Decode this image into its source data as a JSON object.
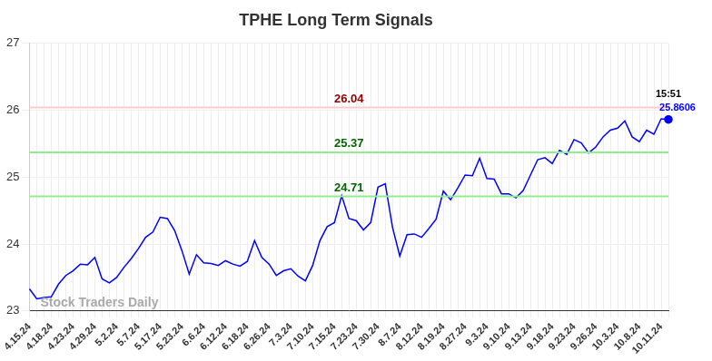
{
  "chart_data": {
    "type": "line",
    "title": "TPHE Long Term Signals",
    "categories": [
      "4.15.24",
      null,
      null,
      "4.18.24",
      null,
      null,
      "4.23.24",
      null,
      null,
      "4.29.24",
      null,
      null,
      "5.2.24",
      null,
      null,
      "5.7.24",
      null,
      null,
      "5.17.24",
      null,
      null,
      "5.23.24",
      null,
      null,
      "6.6.24",
      null,
      null,
      "6.12.24",
      null,
      null,
      "6.18.24",
      null,
      null,
      "6.26.24",
      null,
      null,
      "7.3.24",
      null,
      null,
      "7.10.24",
      null,
      null,
      "7.15.24",
      null,
      null,
      "7.23.24",
      null,
      null,
      "7.30.24",
      null,
      null,
      "8.7.24",
      null,
      null,
      "8.12.24",
      null,
      null,
      "8.19.24",
      null,
      null,
      "8.27.24",
      null,
      null,
      "9.3.24",
      null,
      null,
      "9.10.24",
      null,
      null,
      "9.13.24",
      null,
      null,
      "9.18.24",
      null,
      null,
      "9.23.24",
      null,
      null,
      "9.26.24",
      null,
      null,
      "10.3.24",
      null,
      null,
      "10.8.24",
      null,
      null,
      "10.11.24",
      null
    ],
    "values": [
      23.33,
      23.18,
      23.2,
      23.21,
      23.4,
      23.53,
      23.6,
      23.7,
      23.69,
      23.8,
      23.48,
      23.42,
      23.5,
      23.65,
      23.78,
      23.93,
      24.1,
      24.18,
      24.4,
      24.38,
      24.2,
      23.9,
      23.55,
      23.84,
      23.72,
      23.71,
      23.68,
      23.75,
      23.7,
      23.67,
      23.74,
      24.05,
      23.8,
      23.7,
      23.53,
      23.6,
      23.63,
      23.52,
      23.45,
      23.68,
      24.05,
      24.26,
      24.32,
      24.72,
      24.38,
      24.35,
      24.21,
      24.32,
      24.85,
      24.9,
      24.25,
      23.82,
      24.14,
      24.15,
      24.1,
      24.23,
      24.37,
      24.79,
      24.66,
      24.84,
      25.03,
      25.02,
      25.28,
      24.98,
      24.97,
      24.75,
      24.75,
      24.69,
      24.8,
      25.03,
      25.26,
      25.29,
      25.2,
      25.4,
      25.34,
      25.56,
      25.51,
      25.36,
      25.45,
      25.6,
      25.7,
      25.73,
      25.84,
      25.6,
      25.53,
      25.7,
      25.64,
      25.87,
      25.8606
    ],
    "color": "#0000ff",
    "ylim": [
      23,
      27
    ],
    "yticks": [
      23,
      24,
      25,
      26,
      27
    ],
    "grid": true,
    "annotations": [
      {
        "y": 26.04,
        "label": "26.04",
        "color": "#8b0000",
        "line_color": "#ffcccc"
      },
      {
        "y": 25.37,
        "label": "25.37",
        "color": "#006400",
        "line_color": "#90ee90"
      },
      {
        "y": 24.71,
        "label": "24.71",
        "color": "#006400",
        "line_color": "#90ee90"
      }
    ],
    "last_point": {
      "time": "15:51",
      "value": 25.8606,
      "color": "#0000ff"
    },
    "watermark": "Stock Traders Daily"
  }
}
